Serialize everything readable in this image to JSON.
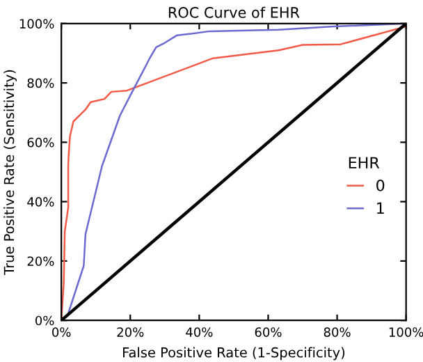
{
  "chart_data": {
    "type": "line",
    "title": "ROC Curve of EHR",
    "xlabel": "False Positive Rate (1-Specificity)",
    "ylabel": "True Positive Rate (Sensitivity)",
    "legend_title": "EHR",
    "series": [
      {
        "name": "0",
        "color": "#f05a46",
        "x": [
          0,
          0.7,
          1,
          2,
          2,
          2.1,
          2.5,
          3.5,
          7,
          8.5,
          12.5,
          14.5,
          19,
          44,
          63,
          70,
          81,
          100
        ],
        "values": [
          0,
          12.6,
          30,
          38,
          52,
          55,
          62,
          67,
          71,
          73.5,
          74.6,
          77,
          77.4,
          88.3,
          91,
          92.8,
          93,
          99
        ]
      },
      {
        "name": "1",
        "color": "#6a6ad0",
        "x": [
          0,
          1.8,
          6.5,
          7,
          11.8,
          17,
          21,
          23.5,
          25.5,
          27.5,
          30,
          33.5,
          38,
          43,
          63,
          79,
          100
        ],
        "values": [
          0,
          1.6,
          18.4,
          29,
          52,
          69,
          78,
          83.5,
          88,
          92,
          93.5,
          96,
          96.6,
          97.4,
          97.9,
          99,
          100
        ]
      },
      {
        "color": "#000000",
        "x": [
          0,
          100
        ],
        "values": [
          0,
          100
        ]
      }
    ],
    "xlim": [
      0,
      100
    ],
    "ylim": [
      0,
      100
    ],
    "xticks": [
      {
        "value": 0,
        "label": "0%"
      },
      {
        "value": 20,
        "label": "20%"
      },
      {
        "value": 40,
        "label": "40%"
      },
      {
        "value": 60,
        "label": "60%"
      },
      {
        "value": 80,
        "label": "80%"
      },
      {
        "value": 100,
        "label": "100%"
      }
    ],
    "yticks": [
      {
        "value": 0,
        "label": "0%"
      },
      {
        "value": 20,
        "label": "20%"
      },
      {
        "value": 40,
        "label": "40%"
      },
      {
        "value": 60,
        "label": "60%"
      },
      {
        "value": 80,
        "label": "80%"
      },
      {
        "value": 100,
        "label": "100%"
      }
    ],
    "grid": false,
    "legend": "right",
    "marker": "none",
    "line_style": "solid"
  }
}
